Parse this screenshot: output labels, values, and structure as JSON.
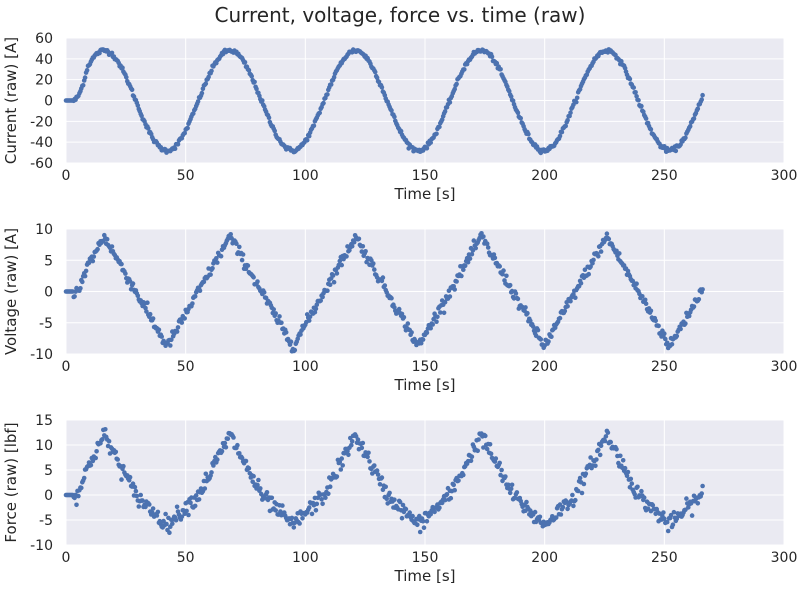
{
  "figure": {
    "title": "Current, voltage, force vs. time (raw)"
  },
  "style": {
    "panel_bg": "#eaeaf2",
    "grid": "#ffffff",
    "marker": "#4c72b0",
    "text": "#262626"
  },
  "chart_data": [
    {
      "type": "scatter",
      "xlabel": "Time [s]",
      "ylabel": "Current (raw) [A]",
      "xlim": [
        0,
        300
      ],
      "ylim": [
        -60,
        60
      ],
      "xticks": [
        0,
        50,
        100,
        150,
        200,
        250,
        300
      ],
      "yticks": [
        -60,
        -40,
        -20,
        0,
        20,
        40,
        60
      ],
      "grid": true,
      "signal": {
        "t_start": 0,
        "t_end": 266,
        "period_s": 52.5,
        "peak_t_s": 16,
        "amplitude": 48,
        "onset_s": 3,
        "wave": "sine",
        "noise": 1
      }
    },
    {
      "type": "scatter",
      "xlabel": "Time [s]",
      "ylabel": "Voltage (raw) [A]",
      "xlim": [
        0,
        300
      ],
      "ylim": [
        -10,
        10
      ],
      "xticks": [
        0,
        50,
        100,
        150,
        200,
        250,
        300
      ],
      "yticks": [
        -10,
        -5,
        0,
        5,
        10
      ],
      "grid": true,
      "signal": {
        "t_start": 0,
        "t_end": 266,
        "period_s": 52.5,
        "peak_t_s": 16,
        "amplitude": 8.8,
        "onset_s": 3,
        "wave": "triangle",
        "noise": 0.45
      }
    },
    {
      "type": "scatter",
      "xlabel": "Time [s]",
      "ylabel": "Force (raw) [lbf]",
      "xlim": [
        0,
        300
      ],
      "ylim": [
        -10,
        15
      ],
      "xticks": [
        0,
        50,
        100,
        150,
        200,
        250,
        300
      ],
      "yticks": [
        -10,
        -5,
        0,
        5,
        10,
        15
      ],
      "grid": true,
      "signal": {
        "t_start": 0,
        "t_end": 266,
        "period_s": 52.5,
        "peak_t_s": 16,
        "amplitude_pos": 12,
        "amplitude_neg": 6,
        "onset_s": 3,
        "wave": "triangle",
        "noise": 0.8
      }
    }
  ]
}
